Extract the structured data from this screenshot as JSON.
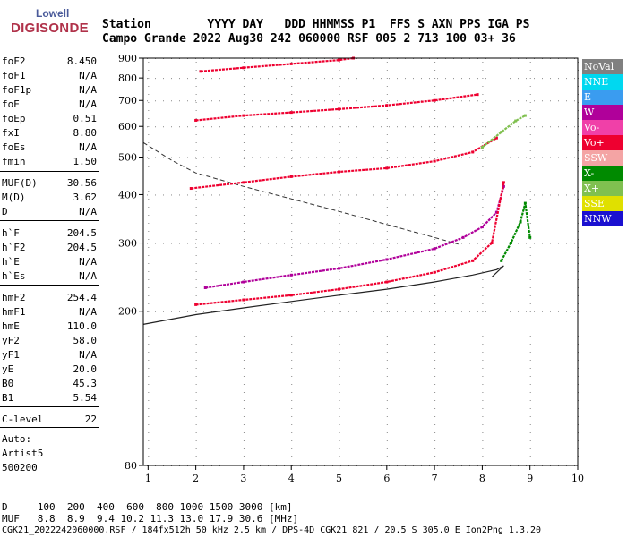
{
  "logo": {
    "top": "Lowell",
    "bottom": "DIGISONDE"
  },
  "header": {
    "line1": "Station        YYYY DAY   DDD HHMMSS P1  FFS S AXN PPS IGA PS",
    "line2": "Campo Grande 2022 Aug30 242 060000 RSF 005 2 713 100 03+ 36"
  },
  "params": [
    {
      "name": "foF2",
      "value": "8.450"
    },
    {
      "name": "foF1",
      "value": "N/A"
    },
    {
      "name": "foF1p",
      "value": "N/A"
    },
    {
      "name": "foE",
      "value": "N/A"
    },
    {
      "name": "foEp",
      "value": "0.51"
    },
    {
      "name": "fxI",
      "value": "8.80"
    },
    {
      "name": "foEs",
      "value": "N/A"
    },
    {
      "name": "fmin",
      "value": "1.50"
    },
    {
      "name": "MUF(D)",
      "value": "30.56"
    },
    {
      "name": "M(D)",
      "value": "3.62"
    },
    {
      "name": "D",
      "value": "N/A"
    },
    {
      "name": "h`F",
      "value": "204.5"
    },
    {
      "name": "h`F2",
      "value": "204.5"
    },
    {
      "name": "h`E",
      "value": "N/A"
    },
    {
      "name": "h`Es",
      "value": "N/A"
    },
    {
      "name": "hmF2",
      "value": "254.4"
    },
    {
      "name": "hmF1",
      "value": "N/A"
    },
    {
      "name": "hmE",
      "value": "110.0"
    },
    {
      "name": "yF2",
      "value": "58.0"
    },
    {
      "name": "yF1",
      "value": "N/A"
    },
    {
      "name": "yE",
      "value": "20.0"
    },
    {
      "name": "B0",
      "value": "45.3"
    },
    {
      "name": "B1",
      "value": "5.54"
    },
    {
      "name": "C-level",
      "value": "22"
    }
  ],
  "auto": {
    "line1": "Auto:",
    "line2": "Artist5",
    "line3": "500200"
  },
  "legend": [
    {
      "label": "NoVal",
      "color": "#808080"
    },
    {
      "label": "NNE",
      "color": "#00d8f0"
    },
    {
      "label": "E",
      "color": "#3a9cf0"
    },
    {
      "label": "W",
      "color": "#b0009a"
    },
    {
      "label": "Vo-",
      "color": "#f040a8"
    },
    {
      "label": "Vo+",
      "color": "#ee0030"
    },
    {
      "label": "SSW",
      "color": "#f4a4a4"
    },
    {
      "label": "X-",
      "color": "#008a00"
    },
    {
      "label": "X+",
      "color": "#80c050"
    },
    {
      "label": "SSE",
      "color": "#e0e000"
    },
    {
      "label": "NNW",
      "color": "#1a10d0"
    }
  ],
  "footer": {
    "line1": "D     100  200  400  600  800 1000 1500 3000 [km]",
    "line2": "MUF   8.8  8.9  9.4 10.2 11.3 13.0 17.9 30.6 [MHz]",
    "line3": "CGK21_2022242060000.RSF / 184fx512h 50 kHz 2.5 km / DPS-4D CGK21 821 / 20.5 S 305.0 E Ion2Png 1.3.20"
  },
  "chart_data": {
    "type": "scatter",
    "title": "",
    "xlabel": "",
    "ylabel": "",
    "x_ticks": [
      "1",
      "2",
      "3",
      "4",
      "5",
      "6",
      "7",
      "8",
      "9",
      "10"
    ],
    "y_ticks": [
      "80",
      "200",
      "300",
      "400",
      "500",
      "600",
      "700",
      "800",
      "900"
    ],
    "xlim": [
      0.9,
      10.0
    ],
    "ylim": [
      80,
      900
    ],
    "series": [
      {
        "name": "W",
        "color": "#b0009a",
        "points": [
          [
            2.2,
            230
          ],
          [
            3.0,
            238
          ],
          [
            4.0,
            248
          ],
          [
            5.0,
            258
          ],
          [
            6.0,
            272
          ],
          [
            7.0,
            290
          ],
          [
            7.6,
            310
          ],
          [
            8.0,
            330
          ],
          [
            8.3,
            360
          ],
          [
            8.45,
            420
          ]
        ]
      },
      {
        "name": "Vo+",
        "color": "#ee0030",
        "points": [
          [
            2.0,
            208
          ],
          [
            3.0,
            214
          ],
          [
            4.0,
            220
          ],
          [
            5.0,
            228
          ],
          [
            6.0,
            238
          ],
          [
            7.0,
            252
          ],
          [
            7.8,
            270
          ],
          [
            8.2,
            300
          ],
          [
            8.45,
            430
          ]
        ]
      },
      {
        "name": "X-",
        "color": "#008a00",
        "points": [
          [
            8.4,
            270
          ],
          [
            8.6,
            300
          ],
          [
            8.8,
            340
          ],
          [
            8.9,
            380
          ],
          [
            9.0,
            310
          ]
        ]
      },
      {
        "name": "Vo+ 2F",
        "color": "#ee0030",
        "points": [
          [
            1.9,
            415
          ],
          [
            3.0,
            430
          ],
          [
            4.0,
            445
          ],
          [
            5.0,
            458
          ],
          [
            6.0,
            468
          ],
          [
            7.0,
            488
          ],
          [
            7.8,
            515
          ],
          [
            8.3,
            560
          ]
        ]
      },
      {
        "name": "X+ 2F",
        "color": "#80c050",
        "points": [
          [
            8.0,
            530
          ],
          [
            8.4,
            580
          ],
          [
            8.7,
            620
          ],
          [
            8.9,
            640
          ]
        ]
      },
      {
        "name": "Vo+ 3F",
        "color": "#ee0030",
        "points": [
          [
            2.0,
            622
          ],
          [
            3.0,
            640
          ],
          [
            4.0,
            652
          ],
          [
            5.0,
            665
          ],
          [
            6.0,
            680
          ],
          [
            7.0,
            700
          ],
          [
            7.9,
            725
          ]
        ]
      },
      {
        "name": "Vo+ 4F",
        "color": "#ee0030",
        "points": [
          [
            2.1,
            832
          ],
          [
            3.0,
            850
          ],
          [
            4.0,
            870
          ],
          [
            5.0,
            890
          ],
          [
            5.3,
            900
          ]
        ]
      }
    ],
    "profile_line": {
      "points": [
        [
          0.9,
          185
        ],
        [
          2.0,
          196
        ],
        [
          3.0,
          204
        ],
        [
          4.0,
          212
        ],
        [
          5.0,
          220
        ],
        [
          6.0,
          228
        ],
        [
          7.0,
          238
        ],
        [
          7.8,
          248
        ],
        [
          8.3,
          256
        ],
        [
          8.45,
          262
        ],
        [
          8.2,
          245
        ]
      ]
    },
    "muf_curve": {
      "points": [
        [
          0.9,
          545
        ],
        [
          1.5,
          490
        ],
        [
          2.0,
          455
        ],
        [
          3.0,
          420
        ],
        [
          4.0,
          390
        ],
        [
          5.0,
          362
        ],
        [
          6.0,
          335
        ],
        [
          7.0,
          310
        ],
        [
          7.5,
          298
        ]
      ]
    }
  }
}
